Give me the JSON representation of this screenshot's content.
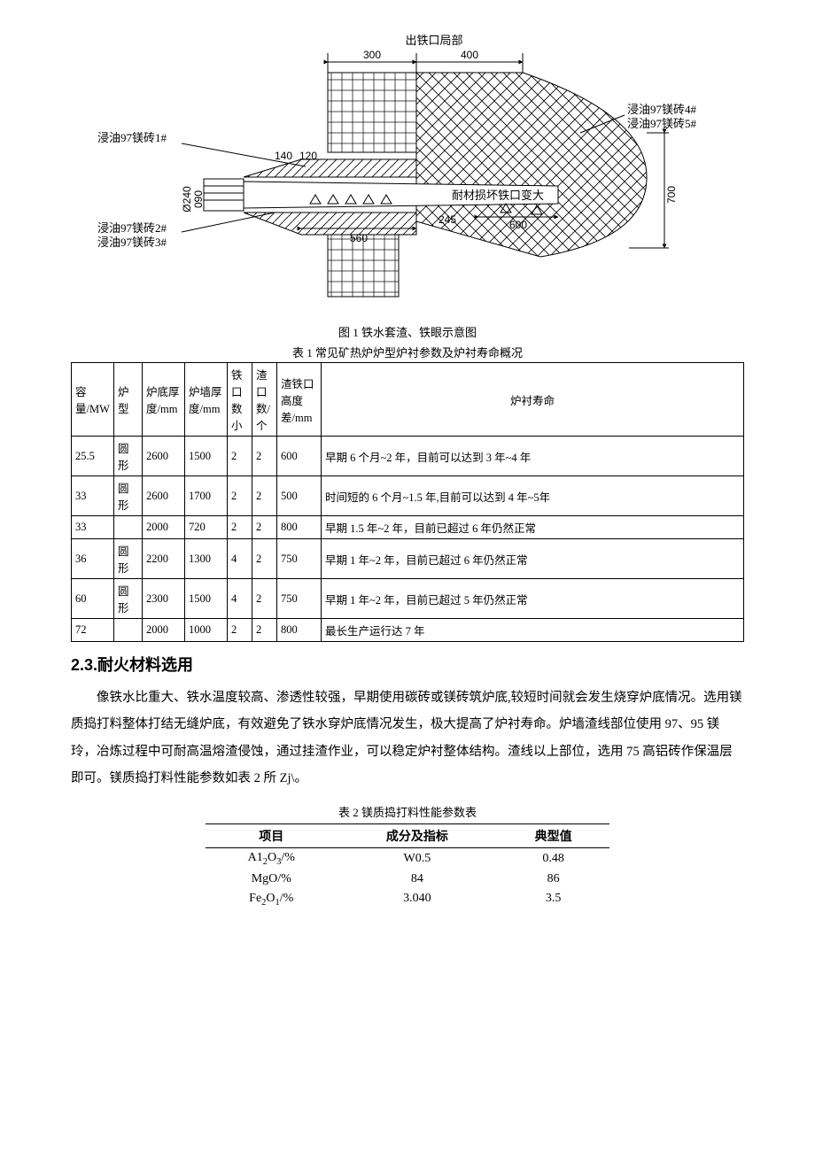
{
  "figure1": {
    "caption": "图 1 铁水套渣、铁眼示意图",
    "title_top": "出铁口局部",
    "dims_top": [
      "300",
      "400"
    ],
    "labels_left_upper": "浸油97镁砖1#",
    "labels_left_lower1": "浸油97镁砖2#",
    "labels_left_lower2": "浸油97镁砖3#",
    "labels_right_upper1": "浸油97镁砖4#",
    "labels_right_upper2": "浸油97镁砖5#",
    "label_center": "耐材损坏铁口变大",
    "dims_mid": [
      "140",
      "120"
    ],
    "dims_bottom": [
      "560",
      "245",
      "600"
    ],
    "dim_right": "700",
    "dims_left_vert": [
      "Ø240",
      "090"
    ],
    "stroke": "#000000",
    "bg": "#ffffff"
  },
  "table1": {
    "caption": "表 1 常见矿热炉炉型炉衬参数及炉衬寿命概况",
    "headers": [
      "容量/MW",
      "炉型",
      "炉底厚度/mm",
      "炉墙厚度/mm",
      "铁口数小",
      "渣口数/个",
      "渣铁口高度差/mm",
      "炉衬寿命"
    ],
    "rows": [
      {
        "cap": "25.5",
        "shape": "圆形",
        "bot": "2600",
        "wall": "1500",
        "iron": "2",
        "slag": "2",
        "hd": "600",
        "life": "早期 6 个月~2 年，目前可以达到 3 年~4 年"
      },
      {
        "cap": "33",
        "shape": "圆形",
        "bot": "2600",
        "wall": "1700",
        "iron": "2",
        "slag": "2",
        "hd": "500",
        "life": "时间短的 6 个月~1.5 年,目前可以达到 4 年~5年"
      },
      {
        "cap": "33",
        "shape": "",
        "bot": "2000",
        "wall": "720",
        "iron": "2",
        "slag": "2",
        "hd": "800",
        "life": "早期 1.5 年~2 年，目前已超过 6 年仍然正常"
      },
      {
        "cap": "36",
        "shape": "圆形",
        "bot": "2200",
        "wall": "1300",
        "iron": "4",
        "slag": "2",
        "hd": "750",
        "life": "早期 1 年~2 年，目前已超过 6 年仍然正常"
      },
      {
        "cap": "60",
        "shape": "圆形",
        "bot": "2300",
        "wall": "1500",
        "iron": "4",
        "slag": "2",
        "hd": "750",
        "life": "早期 1 年~2 年，目前已超过 5 年仍然正常"
      },
      {
        "cap": "72",
        "shape": "",
        "bot": "2000",
        "wall": "1000",
        "iron": "2",
        "slag": "2",
        "hd": "800",
        "life": "最长生产运行达 7 年"
      }
    ]
  },
  "section": {
    "heading": "2.3.耐火材料选用",
    "paragraph": "像铁水比重大、铁水温度较高、渗透性较强，早期使用碳砖或镁砖筑炉底,较短时间就会发生烧穿炉底情况。选用镁质捣打料整体打结无缝炉底，有效避免了铁水穿炉底情况发生，极大提高了炉衬寿命。炉墙渣线部位使用 97、95 镁玲，冶炼过程中可耐高温熔渣侵蚀，通过挂渣作业，可以稳定炉衬整体结构。渣线以上部位，选用 75 高铝砖作保温层即可。镁质捣打料性能参数如表 2 所 Zj\\。"
  },
  "table2": {
    "caption": "表 2 镁质捣打料性能参数表",
    "headers": [
      "项目",
      "成分及指标",
      "典型值"
    ],
    "rows": [
      {
        "item_html": "A1<span class='sub'>2</span>O<span class='sub'>3</span>/%",
        "spec": "W0.5",
        "typ": "0.48"
      },
      {
        "item_html": "MgO/%",
        "spec": "84",
        "typ": "86"
      },
      {
        "item_html": "Fe<span class='sub'>2</span>O<span class='sub'>1</span>/%",
        "spec": "3.040",
        "typ": "3.5"
      }
    ]
  }
}
